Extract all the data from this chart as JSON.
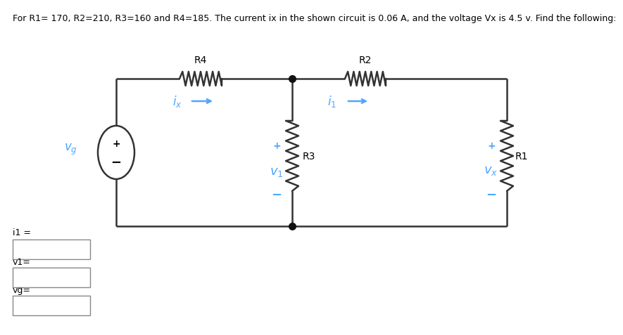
{
  "title": "For R1= 170, R2=210, R3=160 and R4=185. The current ix in the shown circuit is 0.06 A, and the voltage Vx is 4.5 v. Find the following:",
  "title_fontsize": 9.0,
  "title_color": "#000000",
  "background_color": "#ffffff",
  "circuit_color": "#333333",
  "blue": "#4da6ff",
  "black": "#000000",
  "R1": 170,
  "R2": 210,
  "R3": 160,
  "R4": 185,
  "ix": 0.06,
  "Vx": 4.5,
  "input_labels": [
    "i1 =",
    "v1=",
    "vg="
  ],
  "box_color": "#aaaaaa",
  "lw": 1.8
}
